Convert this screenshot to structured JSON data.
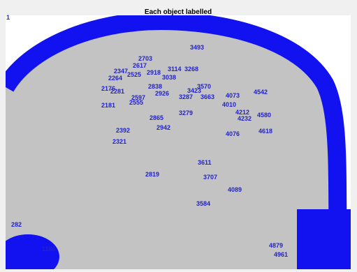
{
  "title": "Each object labelled",
  "labels": [
    "1",
    "2703",
    "2617",
    "2347",
    "2918",
    "3114",
    "3268",
    "3493",
    "2264",
    "2525",
    "3038",
    "2838",
    "2176",
    "2281",
    "2597",
    "2555",
    "2926",
    "3287",
    "3423",
    "3570",
    "3663",
    "4073",
    "4542",
    "2181",
    "3279",
    "4010",
    "4212",
    "4232",
    "4580",
    "2865",
    "2942",
    "2392",
    "4076",
    "4618",
    "2321",
    "3611",
    "2819",
    "3707",
    "4089",
    "3584",
    "282",
    "1186",
    "4879",
    "4961"
  ]
}
